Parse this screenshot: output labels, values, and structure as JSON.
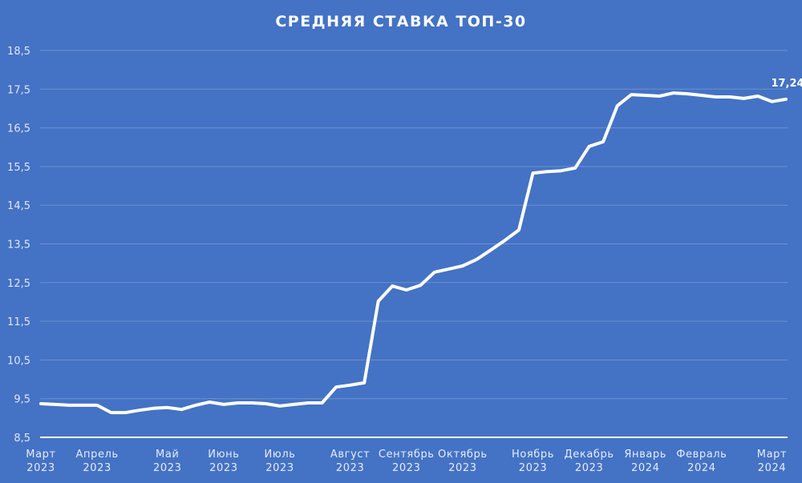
{
  "chart_data": {
    "type": "line",
    "title": "СРЕДНЯЯ СТАВКА ТОП-30",
    "xlabel": "",
    "ylabel": "",
    "ylim": [
      8.5,
      18.5
    ],
    "yticks": [
      "8,5",
      "9,5",
      "10,5",
      "11,5",
      "12,5",
      "13,5",
      "14,5",
      "15,5",
      "16,5",
      "17,5",
      "18,5"
    ],
    "grid": true,
    "legend": null,
    "x_month_labels": [
      {
        "month": "Март",
        "year": "2023",
        "index": 0
      },
      {
        "month": "Апрель",
        "year": "2023",
        "index": 4
      },
      {
        "month": "Май",
        "year": "2023",
        "index": 9
      },
      {
        "month": "Июнь",
        "year": "2023",
        "index": 13
      },
      {
        "month": "Июль",
        "year": "2023",
        "index": 17
      },
      {
        "month": "Август",
        "year": "2023",
        "index": 22
      },
      {
        "month": "Сентябрь",
        "year": "2023",
        "index": 26
      },
      {
        "month": "Октябрь",
        "year": "2023",
        "index": 30
      },
      {
        "month": "Ноябрь",
        "year": "2023",
        "index": 35
      },
      {
        "month": "Декабрь",
        "year": "2023",
        "index": 39
      },
      {
        "month": "Январь",
        "year": "2024",
        "index": 43
      },
      {
        "month": "Февраль",
        "year": "2024",
        "index": 47
      },
      {
        "month": "Март",
        "year": "2024",
        "index": 52
      }
    ],
    "series": [
      {
        "name": "Средняя ставка ТОП-30",
        "values": [
          9.37,
          9.35,
          9.33,
          9.33,
          9.33,
          9.14,
          9.14,
          9.2,
          9.25,
          9.27,
          9.22,
          9.33,
          9.41,
          9.35,
          9.39,
          9.39,
          9.37,
          9.31,
          9.35,
          9.39,
          9.39,
          9.8,
          9.85,
          9.91,
          12.02,
          12.41,
          12.31,
          12.43,
          12.77,
          12.85,
          12.93,
          13.1,
          13.34,
          13.59,
          13.86,
          15.33,
          15.37,
          15.39,
          15.46,
          16.02,
          16.14,
          17.07,
          17.36,
          17.34,
          17.32,
          17.4,
          17.38,
          17.34,
          17.3,
          17.3,
          17.26,
          17.32,
          17.18,
          17.24
        ]
      }
    ],
    "annotations": [
      {
        "text": "17,24",
        "index": 53
      }
    ]
  }
}
